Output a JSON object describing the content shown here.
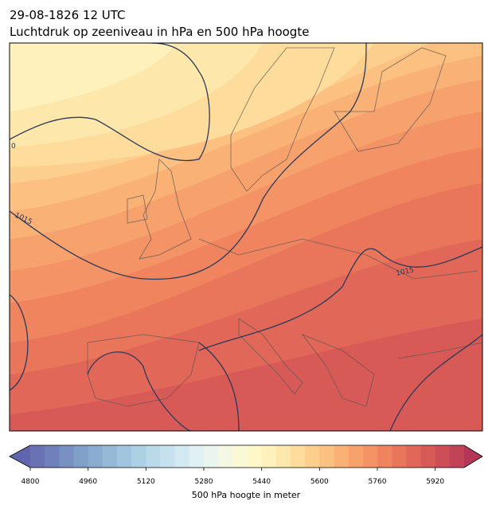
{
  "header": {
    "date": "29-08-1826 12 UTC",
    "title": "Luchtdruk op zeeniveau in hPa en 500 hPa hoogte"
  },
  "map": {
    "contour_labels": [
      "0",
      "1015",
      "1015"
    ]
  },
  "colorbar": {
    "label": "500 hPa hoogte in meter",
    "lim": [
      4800,
      6000
    ],
    "ticks": [
      4800,
      4960,
      5120,
      5280,
      5440,
      5600,
      5760,
      5920
    ],
    "colors": [
      "#6a72b4",
      "#6f80ba",
      "#7890c2",
      "#80a0c8",
      "#89acd0",
      "#95b9d7",
      "#a1c5de",
      "#add1e4",
      "#badae9",
      "#c7e2ee",
      "#d4eaf2",
      "#e1f0f3",
      "#ebf5ef",
      "#f3f8e3",
      "#f9f9d6",
      "#fef8c9",
      "#fef1bb",
      "#fee7ab",
      "#fedc9c",
      "#fdcf8e",
      "#fcc080",
      "#fab176",
      "#f7a26d",
      "#f49365",
      "#ef845f",
      "#e9765b",
      "#e16758",
      "#d85a57",
      "#ce4e57",
      "#c24258"
    ],
    "under_color": "#6066ad",
    "over_color": "#b53559"
  }
}
